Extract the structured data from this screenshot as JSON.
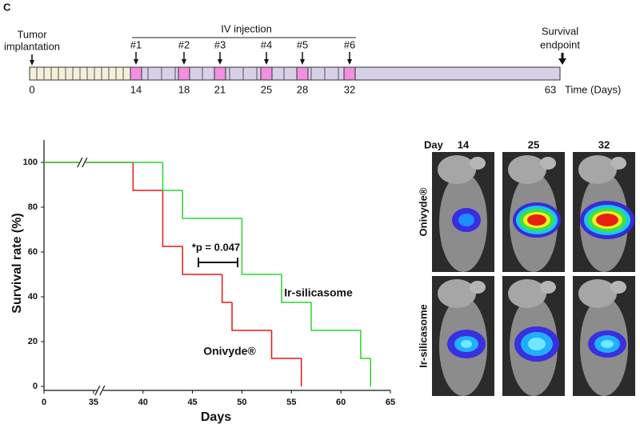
{
  "panel_label": "C",
  "timeline": {
    "start_label": [
      "Tumor",
      "implantation"
    ],
    "injection_label": "IV injection",
    "injections": [
      {
        "label": "#1",
        "day": 14
      },
      {
        "label": "#2",
        "day": 18
      },
      {
        "label": "#3",
        "day": 21
      },
      {
        "label": "#4",
        "day": 25
      },
      {
        "label": "#5",
        "day": 28
      },
      {
        "label": "#6",
        "day": 32
      }
    ],
    "start_day": 0,
    "end_day": 63,
    "end_label": [
      "Survival",
      "endpoint"
    ],
    "axis_label": "Time (Days)"
  },
  "chart_data": {
    "type": "step",
    "ylabel": "Survival rate (%)",
    "xlabel": "Days",
    "xlim": [
      0,
      65
    ],
    "ylim": [
      0,
      110
    ],
    "xticks": [
      0,
      35,
      40,
      45,
      50,
      55,
      60,
      65
    ],
    "yticks": [
      0,
      20,
      40,
      60,
      80,
      100
    ],
    "axis_break": true,
    "annotation": "*p = 0.047",
    "series": [
      {
        "name": "Onivyde®",
        "color": "#e8161b",
        "x": [
          0,
          39,
          42,
          44,
          48,
          49,
          53,
          56
        ],
        "values": [
          100,
          87.5,
          62.5,
          50,
          37.5,
          25,
          12.5,
          0
        ]
      },
      {
        "name": "Ir-silicasome",
        "color": "#2fd12f",
        "x": [
          0,
          42,
          44,
          50,
          54,
          57,
          62,
          63
        ],
        "values": [
          100,
          87.5,
          75,
          50,
          37.5,
          25,
          12.5,
          0
        ]
      }
    ]
  },
  "imaging": {
    "header": "Day",
    "days": [
      14,
      25,
      32
    ],
    "rows": [
      "Onivyde®",
      "Ir-silicasome"
    ]
  }
}
